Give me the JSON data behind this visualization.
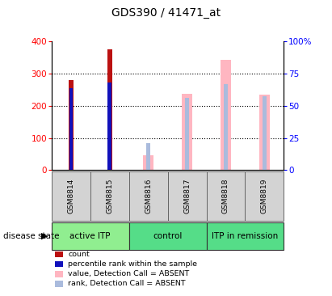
{
  "title": "GDS390 / 41471_at",
  "samples": [
    "GSM8814",
    "GSM8815",
    "GSM8816",
    "GSM8817",
    "GSM8818",
    "GSM8819"
  ],
  "count_values": [
    281,
    376,
    null,
    null,
    null,
    null
  ],
  "percentile_values": [
    255,
    272,
    null,
    null,
    null,
    null
  ],
  "absent_value_values": [
    null,
    null,
    47,
    238,
    342,
    236
  ],
  "absent_rank_values": [
    null,
    null,
    83,
    224,
    268,
    231
  ],
  "ylim_left": [
    0,
    400
  ],
  "ylim_right": [
    0,
    100
  ],
  "yticks_left": [
    0,
    100,
    200,
    300,
    400
  ],
  "yticks_right": [
    0,
    25,
    50,
    75,
    100
  ],
  "yticklabels_right": [
    "0",
    "25",
    "50",
    "75",
    "100%"
  ],
  "count_color": "#BB1111",
  "percentile_color": "#1111BB",
  "absent_value_color": "#FFB6C1",
  "absent_rank_color": "#AABBDD",
  "group_defs": [
    [
      0,
      1,
      "active ITP",
      "#90EE90"
    ],
    [
      2,
      3,
      "control",
      "#55DD88"
    ],
    [
      4,
      5,
      "ITP in remission",
      "#55DD88"
    ]
  ],
  "legend_items": [
    {
      "color": "#BB1111",
      "label": "count"
    },
    {
      "color": "#1111BB",
      "label": "percentile rank within the sample"
    },
    {
      "color": "#FFB6C1",
      "label": "value, Detection Call = ABSENT"
    },
    {
      "color": "#AABBDD",
      "label": "rank, Detection Call = ABSENT"
    }
  ]
}
